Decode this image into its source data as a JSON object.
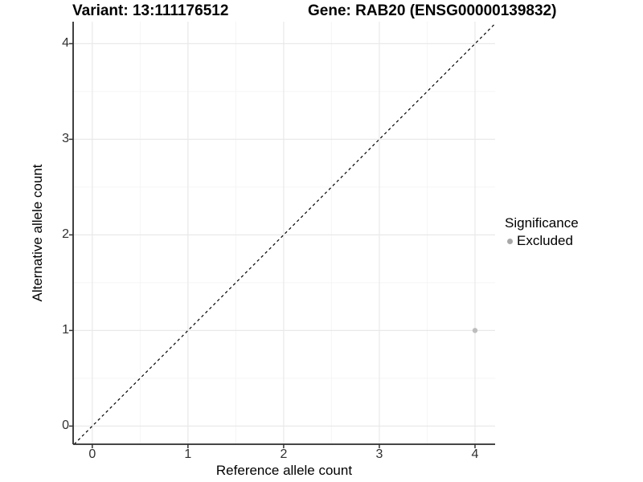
{
  "chart_data": {
    "type": "scatter",
    "title_left": "Variant: 13:111176512",
    "title_right": "Gene: RAB20 (ENSG00000139832)",
    "xlabel": "Reference allele count",
    "ylabel": "Alternative allele count",
    "xlim": [
      -0.2,
      4.21
    ],
    "ylim": [
      -0.19,
      4.23
    ],
    "x_ticks": [
      0,
      1,
      2,
      3,
      4
    ],
    "y_ticks": [
      0,
      1,
      2,
      3,
      4
    ],
    "x_minor_ticks": [
      0.5,
      1.5,
      2.5,
      3.5
    ],
    "y_minor_ticks": [
      0.5,
      1.5,
      2.5,
      3.5
    ],
    "grid": true,
    "series": [
      {
        "name": "Excluded",
        "points": [
          {
            "x": 4,
            "y": 1
          }
        ]
      }
    ],
    "reference_line": {
      "slope": 1,
      "intercept": 0,
      "style": "dashed",
      "color": "#000000"
    },
    "legend": {
      "title": "Significance",
      "position": "right",
      "entries": [
        {
          "label": "Excluded",
          "marker": "circle-icon",
          "color": "#a8a8a8"
        }
      ]
    },
    "colors": {
      "point": "#bdbdbd",
      "grid_major": "#e9e9e9",
      "grid_minor": "#f5f5f5",
      "axis_line": "#2b2b2b",
      "tick_mark": "#333333",
      "text": "#000000"
    }
  }
}
